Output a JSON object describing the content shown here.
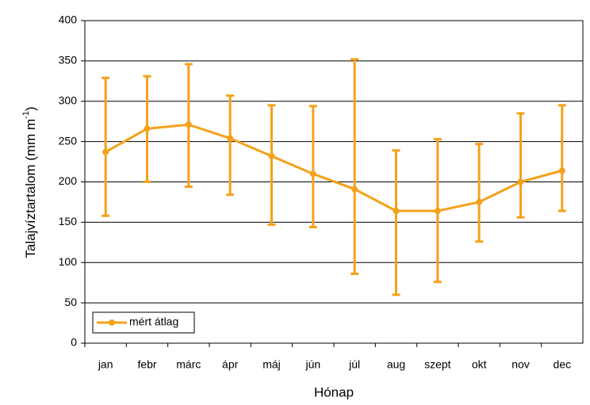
{
  "chart_data": {
    "type": "line",
    "xlabel": "Hónap",
    "ylabel": "Talajvíztartalom (mm m",
    "ylabel_sup": "-1",
    "ylabel_end": ")",
    "categories": [
      "jan",
      "febr",
      "márc",
      "ápr",
      "máj",
      "jún",
      "júl",
      "aug",
      "szept",
      "okt",
      "nov",
      "dec"
    ],
    "series": [
      {
        "name": "mért átlag",
        "color": "#f5a11c",
        "values": [
          237,
          266,
          271,
          254,
          232,
          210,
          191,
          164,
          164,
          175,
          200,
          214
        ],
        "upper": [
          329,
          331,
          346,
          307,
          295,
          294,
          352,
          239,
          253,
          247,
          285,
          295
        ],
        "lower": [
          158,
          200,
          194,
          184,
          147,
          144,
          86,
          60,
          76,
          126,
          156,
          164
        ]
      }
    ],
    "ylim": [
      0,
      400
    ],
    "yticks": [
      0,
      50,
      100,
      150,
      200,
      250,
      300,
      350,
      400
    ],
    "grid": true,
    "legend": "lower left"
  }
}
